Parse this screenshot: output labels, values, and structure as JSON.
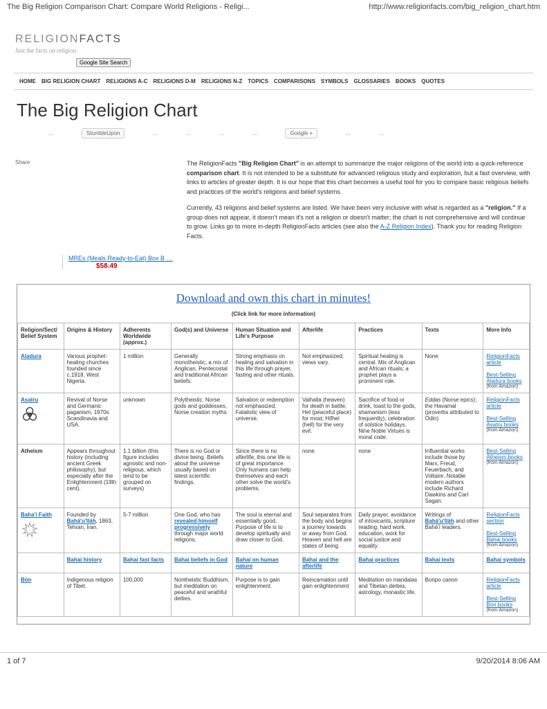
{
  "header": {
    "title": "The Big Religion Comparison Chart: Compare World Religions - Religi...",
    "url": "http://www.religionfacts.com/big_religion_chart.htm"
  },
  "logo": {
    "part1": "RELIGION",
    "part2": "FACTS",
    "tagline": "Just the facts on religion."
  },
  "search_button": "Google Site Search",
  "nav": [
    "HOME",
    "BIG RELIGION CHART",
    "RELIGIONS A-C",
    "RELIGIONS D-M",
    "RELIGIONS N-Z",
    "TOPICS",
    "COMPARISONS",
    "SYMBOLS",
    "GLOSSARIES",
    "BOOKS",
    "QUOTES"
  ],
  "page_title": "The Big Religion Chart",
  "social": {
    "stumble": "StumbleUpon",
    "gplus": "Google +"
  },
  "share_label": "Share",
  "intro": {
    "p1a": "The ReligionFacts ",
    "p1b": "\"Big Religion Chart\"",
    "p1c": " is an attempt to summarize the major religions of the world into a quick-reference ",
    "p1d": "comparison chart",
    "p1e": ". It is not intended to be a substitute for advanced religious study and exploration, but a fast overview, with links to articles of greater depth. It is our hope that this chart becomes a useful tool for you to compare basic religious beliefs and practices of the world's religions and belief systems.",
    "p2a": "Currently, 43 religions and belief systems are listed. We have been very inclusive with what is regarded as a ",
    "p2b": "\"religion.\"",
    "p2c": " If a group does not appear, it doesn't mean it's not a religion or doesn't matter; the chart is not comprehensive and will continue to grow. Links go to more in-depth ReligionFacts articles (see also the ",
    "p2link": "A-Z Religion Index",
    "p2d": "). Thank you for reading Religion Facts."
  },
  "ad": {
    "text": "MREs (Meals Ready-to-Eat) Box B …",
    "price": "$58.49"
  },
  "download_link": "Download and own this chart in minutes!",
  "click_info": "(Click link for more information)",
  "columns": [
    "Religion/Sect/\nBelief System",
    "Origins & History",
    "Adherents Worldwide (approx.)",
    "God(s) and Universe",
    "Human Situation and Life's Purpose",
    "Afterlife",
    "Practices",
    "Texts",
    "More Info"
  ],
  "rows": [
    {
      "name": "Aladura",
      "origins": "Various prophet-healing churches founded since c.1918, West Nigeria.",
      "adherents": "1 million",
      "gods": "Generally monotheistic; a mix of Anglican, Pentecostal and traditional African beliefs.",
      "human": "Strong emphasis on healing and salvation in this life through prayer, fasting and other rituals.",
      "afterlife": "Not emphasized; views vary.",
      "practices": "Spiritual healing is central. Mix of Anglican and African rituals; a prophet plays a prominent role.",
      "texts": "None",
      "more": [
        {
          "link": "ReligionFacts article"
        },
        {
          "link": "Best-Selling Aladura books",
          "sub": "(from Amazon)"
        }
      ]
    },
    {
      "name": "Asatru",
      "icon": "biohazard",
      "origins": "Revival of Norse and Germanic paganism, 1970s Scandinavia and USA.",
      "adherents": "unknown",
      "gods": "Polytheistic. Norse gods and goddesses, Norse creation myths.",
      "human": "Salvation or redemption not emphasized. Fatalistic view of universe.",
      "afterlife": "Valhalla (heaven) for death in battle; Hel (peaceful place) for most; Hifhel (hell) for the very evil.",
      "practices": "Sacrifice of food or drink, toast to the gods, shamanism (less frequently), celebration of solstice holidays. Nine Noble Virtues is moral code.",
      "texts_html": "<i>Eddas</i> (Norse epics); the Havamal (proverbs attributed to Odin)",
      "more": [
        {
          "link": "ReligionFacts article"
        },
        {
          "link": "Best-Selling Asatru books",
          "sub": "(from Amazon)"
        }
      ]
    },
    {
      "name": "Atheism",
      "plain": true,
      "origins": "Appears throughout history (including ancient Greek philosophy), but especially after the Enlightenment (19th cent).",
      "adherents": "1.1 billion (this figure includes agnostic and non-religious, which tend to be grouped on surveys)",
      "gods": "There is no God or divine being. Beliefs about the universe usually based on latest scientific findings.",
      "human": "Since there is no afterlife, this one life is of great importance. Only humans can help themselves and each other solve the world's problems.",
      "afterlife": "none",
      "practices": "none",
      "texts": "Influential works include those by Marx, Freud, Feuerbach, and Voltaire. Notable modern authors include Richard Dawkins and Carl Sagan.",
      "more": [
        {
          "link": "Best-Selling Atheism books",
          "sub": "(from Amazon)"
        }
      ]
    },
    {
      "name": "Baha'i Faith",
      "icon": "star9",
      "origins_html": "Founded by <a class='cell-link'>Bahá'u'lláh</a>, 1863, Tehran, Iran.",
      "adherents": "5-7 million",
      "gods_html": "One God, who has <a class='cell-link'>revealed himself progressively</a> through major world religions.",
      "human": "The soul is eternal and essentially good. Purpose of life is to develop spiritually and draw closer to God.",
      "afterlife": "Soul separates from the body and begins a journey towards or away from God. Heaven and hell are states of being.",
      "practices": "Daily prayer, avoidance of intoxicants, scripture reading, hard work, education, work for social justice and equality.",
      "texts_html": "Writings of <a class='cell-link'>Bahá'u'lláh</a> and other Bahá'í leaders.",
      "more": [
        {
          "link": "ReligionFacts section"
        },
        {
          "link": "Best-Selling Bahai books",
          "sub": "(from Amazon)"
        }
      ],
      "sublinks": [
        "Bahai history",
        "Bahai fast facts",
        "Bahai beliefs in God",
        "Bahai on human nature",
        "Bahai and the afterlife",
        "Bahai practices",
        "Bahai texts",
        "Bahai symbols"
      ]
    },
    {
      "name": "Bön",
      "origins": "Indigenous religion of Tibet.",
      "adherents": "100,000",
      "gods": "Nontheistic Buddhism, but meditation on peaceful and wrathful deities.",
      "human": "Purpose is to gain enlightenment.",
      "afterlife": "Reincarnation until gain enlightenment",
      "practices": "Meditation on mandalas and Tibetan deities, astrology, monastic life.",
      "texts": "Bonpo canon",
      "more": [
        {
          "link": "ReligionFacts article"
        },
        {
          "link": "Best-Selling Bon books",
          "sub": "(from Amazon)"
        }
      ]
    }
  ],
  "footer": {
    "page": "1 of 7",
    "datetime": "9/20/2014 8:06 AM"
  }
}
